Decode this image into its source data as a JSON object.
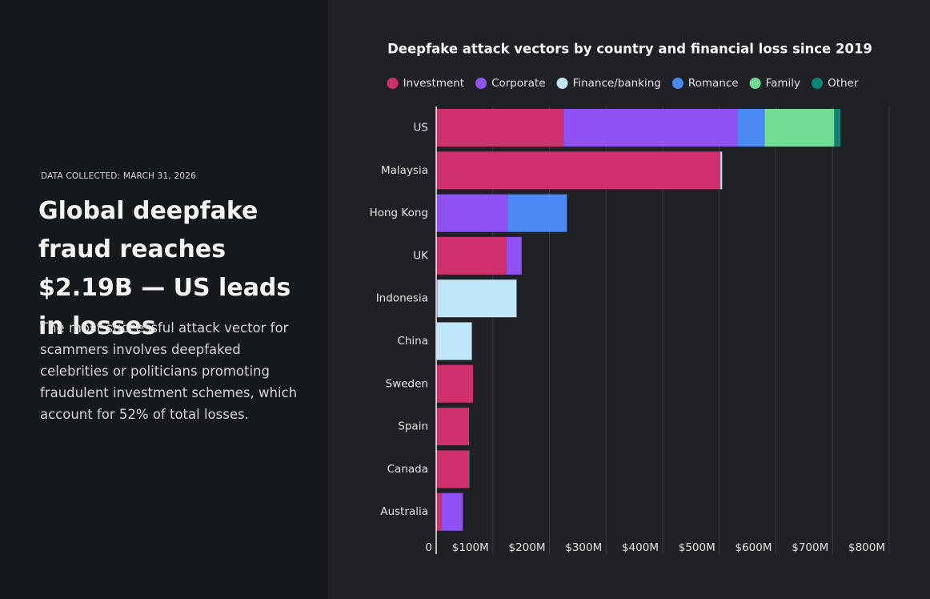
{
  "header": {
    "note": "DATA COLLECTED: MARCH 31, 2026",
    "headline": "Global deepfake fraud reaches $2.19B — US leads in losses",
    "body": "The most successful attack vector for scammers involves deepfaked celebrities or politicians promoting fraudulent investment schemes, which account for 52% of total losses."
  },
  "chart_data": {
    "type": "stacked-bar-horizontal",
    "title": "Deepfake attack vectors by country and financial loss since 2019",
    "categories": [
      "US",
      "Malaysia",
      "Hong Kong",
      "UK",
      "Indonesia",
      "China",
      "Sweden",
      "Spain",
      "Canada",
      "Australia"
    ],
    "series": [
      {
        "name": "Investment",
        "color": "#d0306e",
        "values": [
          225,
          502,
          0,
          124,
          2,
          0,
          65,
          58,
          58,
          10
        ]
      },
      {
        "name": "Corporate",
        "color": "#9152f5",
        "values": [
          307,
          0,
          126,
          27,
          0,
          1,
          0,
          0,
          0,
          37
        ]
      },
      {
        "name": "Finance/banking",
        "color": "#bfe6fb",
        "values": [
          0,
          3,
          0,
          0,
          140,
          62,
          0,
          0,
          0,
          0
        ]
      },
      {
        "name": "Romance",
        "color": "#4b8af5",
        "values": [
          48,
          0,
          105,
          0,
          0,
          0,
          0,
          0,
          0,
          0
        ]
      },
      {
        "name": "Family",
        "color": "#72dc95",
        "values": [
          123,
          0,
          0,
          0,
          0,
          0,
          0,
          0,
          0,
          0
        ]
      },
      {
        "name": "Other",
        "color": "#0f8378",
        "values": [
          11,
          0,
          0,
          0,
          0,
          0,
          0,
          0,
          1,
          0
        ]
      }
    ],
    "xlim": [
      0,
      800
    ],
    "xticks": [
      0,
      {
        "value": 100,
        "label": "$100M"
      },
      {
        "value": 200,
        "label": "$200M"
      },
      {
        "value": 300,
        "label": "$300M"
      },
      {
        "value": 400,
        "label": "$400M"
      },
      {
        "value": 500,
        "label": "$500M"
      },
      {
        "value": 600,
        "label": "$600M"
      },
      {
        "value": 700,
        "label": "$700M"
      },
      {
        "value": 800,
        "label": "$800M"
      }
    ],
    "grid": true,
    "legend": "top"
  }
}
